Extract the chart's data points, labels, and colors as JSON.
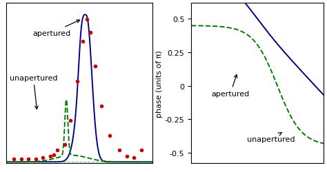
{
  "fig_width": 4.74,
  "fig_height": 2.51,
  "dpi": 100,
  "blue_color": "#00008B",
  "green_color": "#008000",
  "red_color": "#cc0000",
  "ylabel_right": "phase (units of π)",
  "right_yticks": [
    -0.5,
    -0.25,
    0,
    0.25,
    0.5
  ],
  "right_ytick_labels": [
    "-0.5",
    "-0.25",
    "0",
    "0.25",
    "0.5"
  ]
}
